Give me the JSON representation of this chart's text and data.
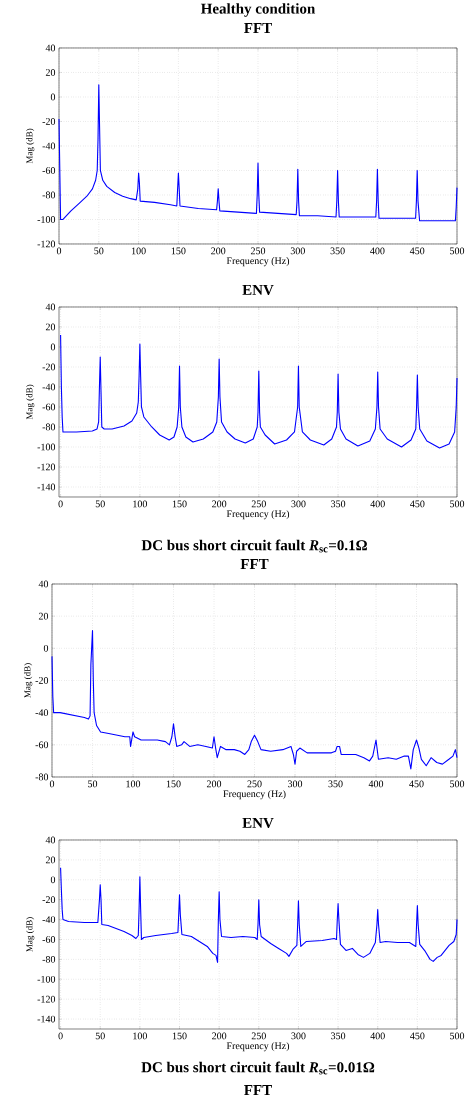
{
  "chart_data": [
    {
      "type": "line",
      "title": "Healthy condition",
      "subtitle": "FFT",
      "xlabel": "Frequency (Hz)",
      "ylabel": "Mag (dB)",
      "xlim": [
        0,
        500
      ],
      "ylim": [
        -120,
        40
      ],
      "xticks": [
        0,
        50,
        100,
        150,
        200,
        250,
        300,
        350,
        400,
        450,
        500
      ],
      "yticks": [
        -120,
        -100,
        -80,
        -60,
        -40,
        -20,
        0,
        20,
        40
      ],
      "grid": true,
      "series": [
        {
          "color": "#0000ff",
          "x": [
            0,
            1,
            2,
            5,
            15,
            25,
            35,
            42,
            46,
            48,
            49,
            50,
            51,
            52,
            55,
            60,
            70,
            80,
            90,
            97,
            99,
            100,
            101,
            102,
            120,
            140,
            148,
            149,
            150,
            151,
            152,
            175,
            198,
            199,
            200,
            201,
            202,
            225,
            248,
            249,
            250,
            251,
            252,
            275,
            298,
            299,
            300,
            301,
            302,
            325,
            348,
            349,
            350,
            351,
            352,
            375,
            398,
            399,
            400,
            401,
            402,
            425,
            448,
            449,
            450,
            451,
            453,
            475,
            498,
            499,
            500
          ],
          "values": [
            -18,
            -60,
            -100,
            -100,
            -93,
            -87,
            -81,
            -75,
            -68,
            -60,
            -35,
            10,
            -25,
            -60,
            -68,
            -73,
            -78,
            -81,
            -83,
            -84,
            -75,
            -62,
            -70,
            -85,
            -86,
            -88,
            -89,
            -75,
            -62,
            -75,
            -89,
            -91,
            -92,
            -85,
            -75,
            -85,
            -93,
            -94,
            -95,
            -80,
            -54,
            -80,
            -94,
            -95,
            -96,
            -85,
            -59,
            -85,
            -97,
            -97,
            -98,
            -85,
            -60,
            -85,
            -98,
            -98,
            -98,
            -85,
            -59,
            -85,
            -99,
            -99,
            -99,
            -85,
            -60,
            -85,
            -101,
            -101,
            -101,
            -90,
            -74
          ]
        }
      ]
    },
    {
      "type": "line",
      "title": "ENV",
      "xlabel": "Frequency (Hz)",
      "ylabel": "Mag (dB)",
      "xlim": [
        -2,
        500
      ],
      "ylim": [
        -150,
        40
      ],
      "xticks": [
        0,
        50,
        100,
        150,
        200,
        250,
        300,
        350,
        400,
        450,
        500
      ],
      "yticks": [
        -140,
        -120,
        -100,
        -80,
        -60,
        -40,
        -20,
        0,
        20,
        40
      ],
      "grid": true,
      "series": [
        {
          "color": "#0000ff",
          "x": [
            0,
            1,
            2,
            3,
            20,
            40,
            46,
            48,
            49,
            50,
            51,
            52,
            55,
            65,
            80,
            90,
            96,
            98,
            99,
            100,
            101,
            102,
            105,
            115,
            125,
            137,
            143,
            147,
            149,
            150,
            151,
            153,
            158,
            167,
            180,
            192,
            197,
            199,
            200,
            201,
            203,
            210,
            220,
            233,
            243,
            248,
            249,
            250,
            251,
            252,
            258,
            270,
            285,
            295,
            299,
            300,
            301,
            305,
            315,
            332,
            342,
            348,
            349,
            350,
            351,
            353,
            360,
            375,
            390,
            397,
            399,
            400,
            401,
            403,
            412,
            430,
            442,
            448,
            449,
            450,
            451,
            453,
            462,
            478,
            490,
            497,
            499,
            500
          ],
          "values": [
            12,
            -40,
            -70,
            -85,
            -85,
            -84,
            -82,
            -75,
            -40,
            -10,
            -45,
            -80,
            -82,
            -82,
            -79,
            -74,
            -66,
            -55,
            -30,
            3,
            -30,
            -60,
            -70,
            -80,
            -88,
            -93,
            -90,
            -80,
            -60,
            -19,
            -60,
            -80,
            -90,
            -95,
            -92,
            -85,
            -75,
            -50,
            -12,
            -50,
            -75,
            -85,
            -92,
            -96,
            -92,
            -80,
            -65,
            -24,
            -65,
            -80,
            -88,
            -97,
            -93,
            -85,
            -60,
            -19,
            -60,
            -85,
            -93,
            -98,
            -92,
            -80,
            -65,
            -27,
            -65,
            -82,
            -92,
            -99,
            -94,
            -82,
            -60,
            -25,
            -60,
            -82,
            -92,
            -100,
            -93,
            -82,
            -60,
            -28,
            -60,
            -82,
            -94,
            -101,
            -97,
            -85,
            -60,
            -31
          ]
        }
      ]
    },
    {
      "type": "line",
      "title": "DC bus short circuit fault *R*$_{sc}$=0.1Ω",
      "subtitle": "FFT",
      "xlabel": "Frequency (Hz)",
      "ylabel": "Mag (dB)",
      "xlim": [
        0,
        500
      ],
      "ylim": [
        -80,
        40
      ],
      "xticks": [
        0,
        50,
        100,
        150,
        200,
        250,
        300,
        350,
        400,
        450,
        500
      ],
      "yticks": [
        -80,
        -60,
        -40,
        -20,
        0,
        20,
        40
      ],
      "grid": true,
      "series": [
        {
          "color": "#0000ff",
          "x": [
            0,
            1,
            2,
            10,
            20,
            30,
            40,
            45,
            47,
            48,
            50,
            51,
            52,
            55,
            60,
            70,
            80,
            90,
            96,
            97,
            99,
            100,
            102,
            110,
            120,
            130,
            140,
            145,
            148,
            150,
            152,
            154,
            160,
            163,
            170,
            180,
            190,
            198,
            200,
            202,
            204,
            208,
            215,
            225,
            232,
            238,
            243,
            246,
            250,
            254,
            258,
            270,
            285,
            295,
            298,
            300,
            302,
            306,
            315,
            330,
            345,
            350,
            352,
            355,
            357,
            365,
            375,
            385,
            392,
            396,
            400,
            403,
            415,
            425,
            435,
            440,
            443,
            446,
            450,
            453,
            456,
            462,
            468,
            475,
            482,
            490,
            495,
            498,
            500
          ],
          "values": [
            -5,
            -30,
            -40,
            -40,
            -41,
            -42,
            -43,
            -44,
            -42,
            -10,
            11,
            -20,
            -40,
            -48,
            -52,
            -53,
            -54,
            -55,
            -55,
            -61,
            -55,
            -52,
            -55,
            -57,
            -57,
            -57,
            -58,
            -60,
            -55,
            -47,
            -55,
            -61,
            -60,
            -58,
            -61,
            -60,
            -61,
            -62,
            -55,
            -62,
            -68,
            -61,
            -63,
            -63,
            -64,
            -66,
            -63,
            -58,
            -54,
            -58,
            -63,
            -64,
            -63,
            -61,
            -66,
            -72,
            -64,
            -62,
            -65,
            -65,
            -65,
            -64,
            -61,
            -61,
            -66,
            -66,
            -66,
            -68,
            -70,
            -67,
            -57,
            -69,
            -68,
            -69,
            -67,
            -67,
            -75,
            -63,
            -57,
            -62,
            -69,
            -73,
            -68,
            -71,
            -72,
            -69,
            -67,
            -63,
            -68
          ]
        }
      ]
    },
    {
      "type": "line",
      "title": "ENV",
      "xlabel": "Frequency (Hz)",
      "ylabel": "Mag (dB)",
      "xlim": [
        -2,
        500
      ],
      "ylim": [
        -150,
        40
      ],
      "xticks": [
        0,
        50,
        100,
        150,
        200,
        250,
        300,
        350,
        400,
        450,
        500
      ],
      "yticks": [
        -140,
        -120,
        -100,
        -80,
        -60,
        -40,
        -20,
        0,
        20,
        40
      ],
      "grid": true,
      "annotations": [
        "DC bus short circuit fault *R*$_{sc}$=0.01Ω",
        "FFT"
      ],
      "series": [
        {
          "color": "#0000ff",
          "x": [
            0,
            1,
            2,
            3,
            10,
            30,
            47,
            49,
            50,
            51,
            52,
            60,
            70,
            80,
            90,
            95,
            98,
            99,
            100,
            101,
            102,
            105,
            120,
            140,
            148,
            149,
            150,
            151,
            153,
            165,
            175,
            185,
            192,
            196,
            198,
            199,
            200,
            201,
            203,
            215,
            230,
            245,
            248,
            249,
            250,
            251,
            253,
            265,
            275,
            285,
            288,
            293,
            298,
            299,
            300,
            301,
            303,
            310,
            330,
            345,
            348,
            349,
            350,
            351,
            353,
            360,
            368,
            375,
            382,
            390,
            397,
            399,
            400,
            401,
            403,
            410,
            425,
            440,
            448,
            449,
            450,
            451,
            453,
            460,
            466,
            470,
            475,
            480,
            490,
            496,
            499,
            500
          ],
          "values": [
            12,
            -10,
            -30,
            -40,
            -42,
            -43,
            -43,
            -20,
            -5,
            -20,
            -45,
            -46,
            -49,
            -52,
            -56,
            -59,
            -56,
            -30,
            3,
            -30,
            -60,
            -58,
            -56,
            -54,
            -53,
            -35,
            -15,
            -35,
            -55,
            -57,
            -62,
            -67,
            -74,
            -76,
            -83,
            -40,
            -12,
            -40,
            -57,
            -58,
            -57,
            -58,
            -60,
            -45,
            -20,
            -45,
            -57,
            -64,
            -69,
            -74,
            -77,
            -70,
            -66,
            -45,
            -21,
            -45,
            -67,
            -62,
            -61,
            -59,
            -60,
            -40,
            -24,
            -40,
            -65,
            -71,
            -69,
            -75,
            -78,
            -74,
            -63,
            -45,
            -30,
            -45,
            -63,
            -62,
            -63,
            -63,
            -67,
            -45,
            -26,
            -45,
            -65,
            -72,
            -80,
            -82,
            -78,
            -76,
            -66,
            -62,
            -55,
            -40
          ]
        }
      ]
    }
  ]
}
